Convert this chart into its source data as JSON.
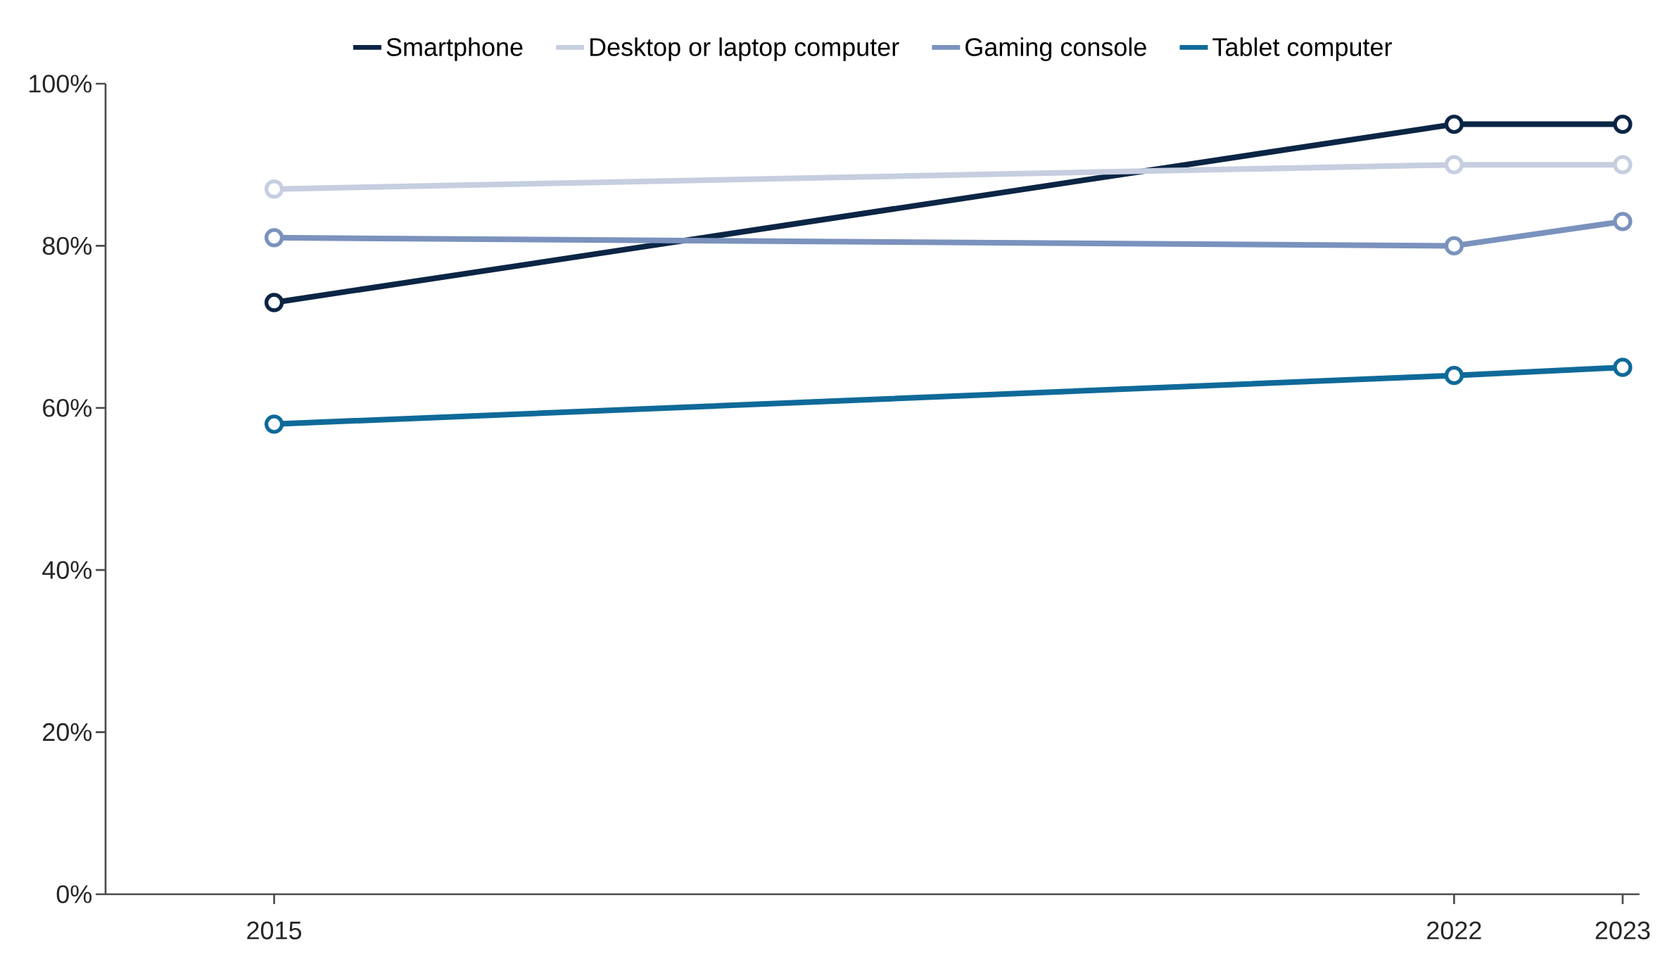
{
  "chart_data": {
    "type": "line",
    "x": [
      2015,
      2022,
      2023
    ],
    "xlim": [
      2014,
      2023.1
    ],
    "xticks": [
      2015,
      2022,
      2023
    ],
    "ylim": [
      0,
      100
    ],
    "yticks": [
      {
        "value": 0,
        "label": "0%"
      },
      {
        "value": 20,
        "label": "20%"
      },
      {
        "value": 40,
        "label": "40%"
      },
      {
        "value": 60,
        "label": "60%"
      },
      {
        "value": 80,
        "label": "80%"
      },
      {
        "value": 100,
        "label": "100%"
      }
    ],
    "legend": "top",
    "marker": "circle",
    "line_style": "solid",
    "series": [
      {
        "name": "Smartphone",
        "color": "#0b2545",
        "values": [
          73,
          95,
          95
        ]
      },
      {
        "name": "Desktop or laptop computer",
        "color": "#c6cee0",
        "values": [
          87,
          90,
          90
        ]
      },
      {
        "name": "Gaming console",
        "color": "#7a92bd",
        "values": [
          81,
          80,
          83
        ]
      },
      {
        "name": "Tablet computer",
        "color": "#0f6a99",
        "values": [
          58,
          64,
          65
        ]
      }
    ]
  }
}
